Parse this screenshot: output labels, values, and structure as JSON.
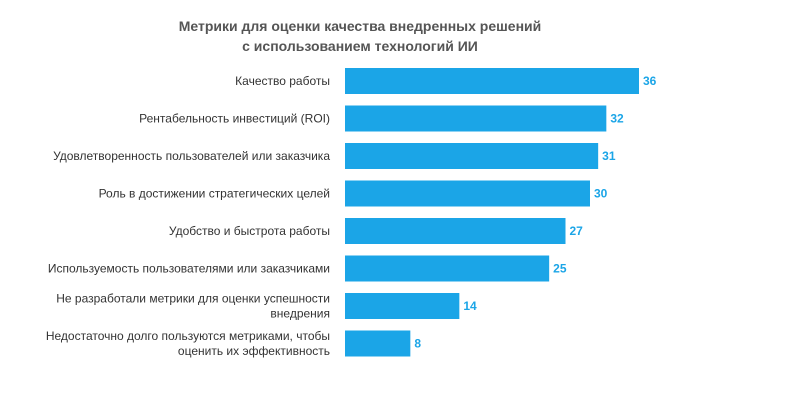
{
  "colors": {
    "bar": "#1ba5e7",
    "value_label": "#1ba5e7",
    "title": "#555555",
    "category_label": "#333333"
  },
  "chart_data": {
    "type": "bar",
    "orientation": "horizontal",
    "title_lines": [
      "Метрики для оценки качества внедренных решений",
      "с использованием технологий ИИ"
    ],
    "xlabel": "",
    "ylabel": "",
    "xlim": [
      0,
      36
    ],
    "grid": false,
    "legend": "none",
    "categories": [
      [
        "Качество работы"
      ],
      [
        "Рентабельность инвестиций (ROI)"
      ],
      [
        "Удовлетворенность пользователей или заказчика"
      ],
      [
        "Роль в достижении стратегических целей"
      ],
      [
        "Удобство и быстрота работы"
      ],
      [
        "Используемость пользователями или заказчиками"
      ],
      [
        "Не разработали метрики для оценки успешности",
        "внедрения"
      ],
      [
        "Недостаточно долго пользуются метриками, чтобы",
        "оценить их эффективность"
      ]
    ],
    "values": [
      36,
      32,
      31,
      30,
      27,
      25,
      14,
      8
    ],
    "value_labels": [
      "36",
      "32",
      "31",
      "30",
      "27",
      "25",
      "14",
      "8"
    ]
  }
}
